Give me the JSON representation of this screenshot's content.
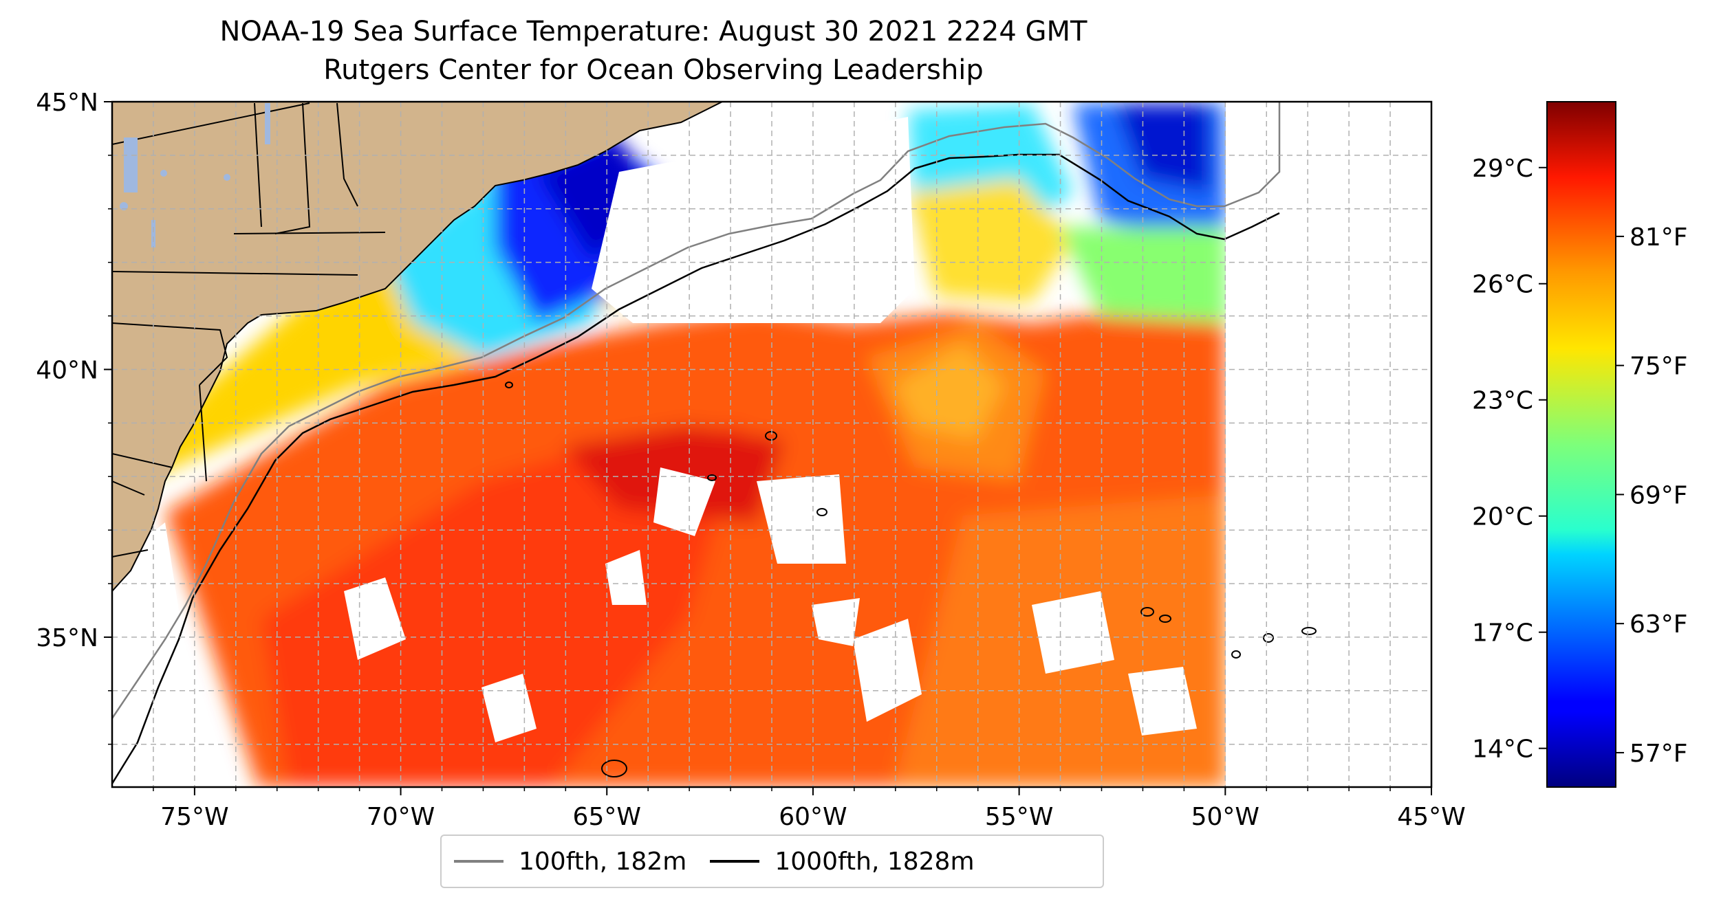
{
  "figure": {
    "title_line1": "NOAA-19 Sea Surface Temperature: August 30 2021 2224 GMT",
    "title_line2": "Rutgers Center for Ocean Observing Leadership"
  },
  "map": {
    "projection": "plate-carree",
    "lon_range": [
      -77,
      -45
    ],
    "lat_range": [
      32.2,
      45
    ],
    "lon_ticks": [
      {
        "value": -75,
        "label": "75°W"
      },
      {
        "value": -70,
        "label": "70°W"
      },
      {
        "value": -65,
        "label": "65°W"
      },
      {
        "value": -60,
        "label": "60°W"
      },
      {
        "value": -55,
        "label": "55°W"
      },
      {
        "value": -50,
        "label": "50°W"
      },
      {
        "value": -45,
        "label": "45°W"
      }
    ],
    "lat_ticks": [
      {
        "value": 45,
        "label": "45°N"
      },
      {
        "value": 40,
        "label": "40°N"
      },
      {
        "value": 35,
        "label": "35°N"
      }
    ],
    "gridlines": true,
    "land_color": "#d2b48c",
    "lake_color": "#9fb8e0"
  },
  "colorbar": {
    "colormap": "jet",
    "range_celsius": [
      13,
      30.7
    ],
    "celsius_ticks": [
      {
        "value": 14,
        "label": "14°C"
      },
      {
        "value": 17,
        "label": "17°C"
      },
      {
        "value": 20,
        "label": "20°C"
      },
      {
        "value": 23,
        "label": "23°C"
      },
      {
        "value": 26,
        "label": "26°C"
      },
      {
        "value": 29,
        "label": "29°C"
      }
    ],
    "fahrenheit_ticks": [
      {
        "value": 57,
        "label": "57°F"
      },
      {
        "value": 63,
        "label": "63°F"
      },
      {
        "value": 69,
        "label": "69°F"
      },
      {
        "value": 75,
        "label": "75°F"
      },
      {
        "value": 81,
        "label": "81°F"
      }
    ]
  },
  "legend": {
    "placement": "bottom-center",
    "entries": [
      {
        "label": "100fth, 182m",
        "color": "#808080"
      },
      {
        "label": "1000fth, 1828m",
        "color": "#000000"
      }
    ]
  }
}
